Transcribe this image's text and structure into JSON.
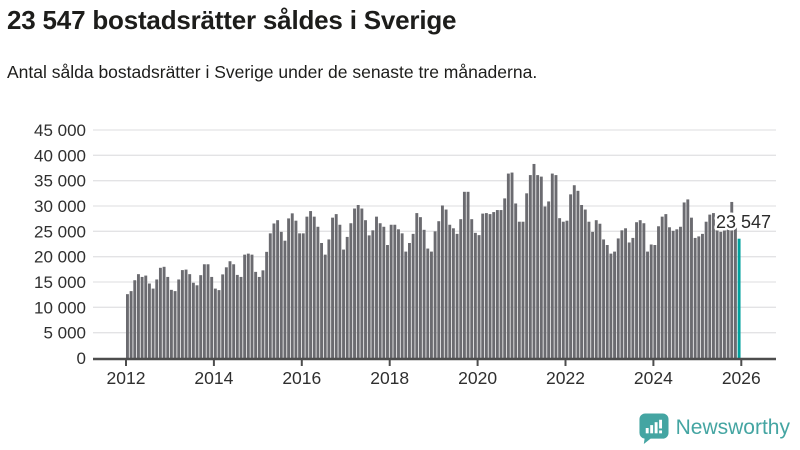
{
  "header": {
    "title": "23 547 bostadsrätter såldes i Sverige",
    "subtitle": "Antal sålda bostadsrätter i Sverige under de senaste tre månaderna."
  },
  "chart_data": {
    "type": "bar",
    "title": "23 547 bostadsrätter såldes i Sverige",
    "subtitle": "Antal sålda bostadsrätter i Sverige under de senaste tre månaderna.",
    "unit": "bostadsrätter (rullande tremånadersperiod)",
    "ylim": [
      0,
      45000
    ],
    "ytick_step": 5000,
    "ytick_labels": [
      "0",
      "5 000",
      "10 000",
      "15 000",
      "20 000",
      "25 000",
      "30 000",
      "35 000",
      "40 000",
      "45 000"
    ],
    "xtick_labels": [
      "2012",
      "2014",
      "2016",
      "2018",
      "2020",
      "2022",
      "2024",
      "2026"
    ],
    "xtick_interval_months": 24,
    "grid": "horizontal",
    "legend": "none",
    "series_by_year": [
      {
        "year": 2012,
        "values": [
          12600,
          13200,
          15350,
          16550,
          16000,
          16270,
          14700,
          13700,
          15500,
          17800,
          18000,
          16000
        ]
      },
      {
        "year": 2013,
        "values": [
          13450,
          13200,
          15500,
          17350,
          17450,
          16550,
          14850,
          14350,
          16350,
          18500,
          18500,
          16000
        ]
      },
      {
        "year": 2014,
        "values": [
          13700,
          13400,
          16500,
          17900,
          19100,
          18500,
          16400,
          16000,
          20400,
          20600,
          20400,
          17000
        ]
      },
      {
        "year": 2015,
        "values": [
          16000,
          17300,
          20950,
          24600,
          26550,
          27200,
          24900,
          23150,
          27550,
          28550,
          27100,
          24600
        ]
      },
      {
        "year": 2016,
        "values": [
          24600,
          27900,
          29000,
          27900,
          25900,
          22700,
          20400,
          23400,
          27700,
          28400,
          26300,
          21400
        ]
      },
      {
        "year": 2017,
        "values": [
          23900,
          26600,
          29500,
          30200,
          29500,
          27200,
          24200,
          25200,
          27900,
          26600,
          25900,
          22300
        ]
      },
      {
        "year": 2018,
        "values": [
          26300,
          26300,
          25400,
          24600,
          21000,
          22700,
          24500,
          28600,
          27800,
          25300,
          21600,
          21000
        ]
      },
      {
        "year": 2019,
        "values": [
          25000,
          27000,
          30100,
          29300,
          26300,
          25600,
          24500,
          27400,
          32800,
          32800,
          27400,
          24700
        ]
      },
      {
        "year": 2020,
        "values": [
          24250,
          28500,
          28600,
          28400,
          28800,
          29200,
          29200,
          31500,
          36400,
          36600,
          30500,
          26900
        ]
      },
      {
        "year": 2021,
        "values": [
          26900,
          32500,
          36100,
          38300,
          36100,
          35800,
          29900,
          30900,
          36400,
          36100,
          27600,
          26900
        ]
      },
      {
        "year": 2022,
        "values": [
          27100,
          32300,
          34100,
          33000,
          30200,
          29300,
          26900,
          24900,
          27200,
          26500,
          23400,
          22300
        ]
      },
      {
        "year": 2023,
        "values": [
          20600,
          21000,
          23600,
          25200,
          25600,
          22800,
          23700,
          26800,
          27200,
          26600,
          21000,
          22400
        ]
      },
      {
        "year": 2024,
        "values": [
          22300,
          26000,
          27900,
          28400,
          25800,
          25100,
          25400,
          25900,
          30700,
          31300,
          27700,
          23700
        ]
      },
      {
        "year": 2025,
        "values": [
          24000,
          24500,
          26900,
          28300,
          28600,
          25300,
          24900,
          25600,
          26100,
          30800,
          26350,
          23547
        ]
      }
    ],
    "highlight": {
      "label": "23 547",
      "value": 23547
    },
    "colors": {
      "bar": "#6b6b70",
      "highlight": "#00a29e",
      "grid": "#e3e3e5",
      "axis": "#4d4d4d",
      "tick_text": "#2f2f2f",
      "annotation_text": "#2b2b2b",
      "annotation_halo": "#ffffff"
    }
  },
  "footer": {
    "brand": "Newsworthy",
    "brand_color": "#44a5a2"
  }
}
